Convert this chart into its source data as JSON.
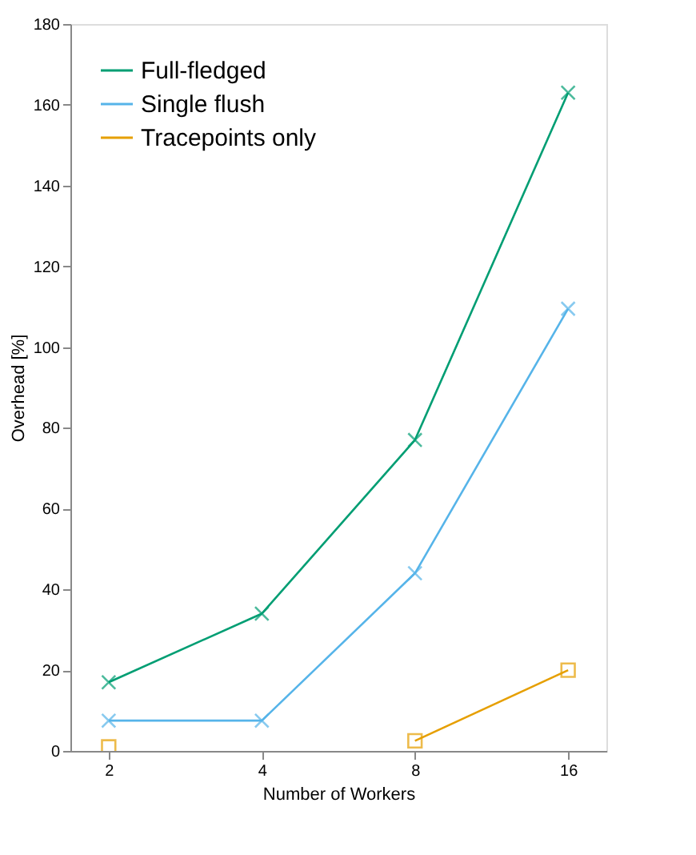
{
  "chart_data": {
    "type": "line",
    "xlabel": "Number of Workers",
    "ylabel": "Overhead [%]",
    "categories": [
      "2",
      "4",
      "8",
      "16"
    ],
    "series": [
      {
        "name": "Full-fledged",
        "color": "#009e73",
        "marker": "cross",
        "values": [
          17,
          34,
          77,
          163
        ]
      },
      {
        "name": "Single flush",
        "color": "#56b4e9",
        "marker": "cross",
        "values": [
          7.5,
          7.5,
          44,
          109.5
        ]
      },
      {
        "name": "Tracepoints only",
        "color": "#e69f00",
        "marker": "square",
        "values": [
          1,
          null,
          2.5,
          20
        ]
      }
    ],
    "ylim": [
      0,
      180
    ],
    "yticks": [
      0,
      20,
      40,
      60,
      80,
      100,
      120,
      140,
      160,
      180
    ],
    "grid": false,
    "legend": "top left",
    "line_style": "solid"
  }
}
